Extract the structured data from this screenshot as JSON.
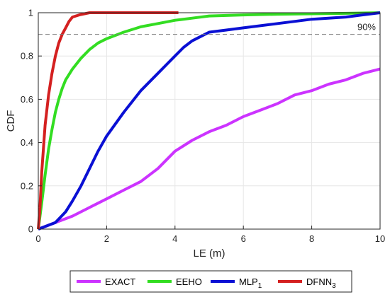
{
  "chart_data": {
    "type": "line",
    "title": "",
    "xlabel": "LE (m)",
    "ylabel": "CDF",
    "xlim": [
      0,
      10
    ],
    "ylim": [
      0,
      1
    ],
    "x_ticks": [
      "0",
      "2",
      "4",
      "6",
      "8",
      "10"
    ],
    "y_ticks": [
      "0",
      "0.2",
      "0.4",
      "0.6",
      "0.8",
      "1"
    ],
    "grid": true,
    "legend_position": "bottom",
    "reference_line": {
      "y": 0.9,
      "label": "90%",
      "style": "dashed",
      "color": "#7f7f7f"
    },
    "series": [
      {
        "name": "EXACT",
        "name_main": "EXACT",
        "name_sub": "",
        "color": "#cc33ff",
        "x": [
          0,
          0.5,
          1,
          1.5,
          2,
          2.5,
          3,
          3.5,
          4,
          4.5,
          5,
          5.5,
          6,
          6.5,
          7,
          7.5,
          8,
          8.5,
          9,
          9.5,
          10
        ],
        "y": [
          0,
          0.03,
          0.06,
          0.1,
          0.14,
          0.18,
          0.22,
          0.28,
          0.36,
          0.41,
          0.45,
          0.48,
          0.52,
          0.55,
          0.58,
          0.62,
          0.64,
          0.67,
          0.69,
          0.72,
          0.74
        ]
      },
      {
        "name": "EEHO",
        "name_main": "EEHO",
        "name_sub": "",
        "color": "#33dd22",
        "x": [
          0,
          0.1,
          0.2,
          0.3,
          0.4,
          0.5,
          0.6,
          0.7,
          0.8,
          1,
          1.25,
          1.5,
          1.75,
          2,
          2.5,
          3,
          3.5,
          4,
          4.5,
          5,
          6,
          7,
          8,
          9,
          10
        ],
        "y": [
          0,
          0.12,
          0.25,
          0.37,
          0.46,
          0.54,
          0.6,
          0.65,
          0.69,
          0.74,
          0.79,
          0.83,
          0.86,
          0.88,
          0.91,
          0.935,
          0.95,
          0.965,
          0.975,
          0.985,
          0.99,
          0.993,
          0.995,
          0.997,
          1.0
        ]
      },
      {
        "name": "MLP1",
        "name_main": "MLP",
        "name_sub": "1",
        "color": "#0a10d4",
        "x": [
          0,
          0.5,
          0.8,
          1,
          1.25,
          1.5,
          1.75,
          2,
          2.5,
          3,
          3.5,
          3.75,
          4,
          4.25,
          4.5,
          4.75,
          5,
          5.5,
          6,
          7,
          8,
          9,
          10
        ],
        "y": [
          0,
          0.03,
          0.08,
          0.13,
          0.2,
          0.28,
          0.36,
          0.43,
          0.54,
          0.64,
          0.72,
          0.76,
          0.8,
          0.84,
          0.87,
          0.89,
          0.91,
          0.92,
          0.93,
          0.95,
          0.97,
          0.98,
          1.0
        ]
      },
      {
        "name": "DFNN3",
        "name_main": "DFNN",
        "name_sub": "3",
        "color": "#d42020",
        "x": [
          0,
          0.05,
          0.1,
          0.2,
          0.3,
          0.4,
          0.5,
          0.6,
          0.7,
          0.8,
          0.9,
          1.0,
          1.2,
          1.5,
          2,
          3,
          4.1
        ],
        "y": [
          0,
          0.1,
          0.26,
          0.48,
          0.62,
          0.72,
          0.8,
          0.86,
          0.9,
          0.93,
          0.96,
          0.98,
          0.99,
          1.0,
          1.0,
          1.0,
          1.0
        ]
      }
    ]
  }
}
